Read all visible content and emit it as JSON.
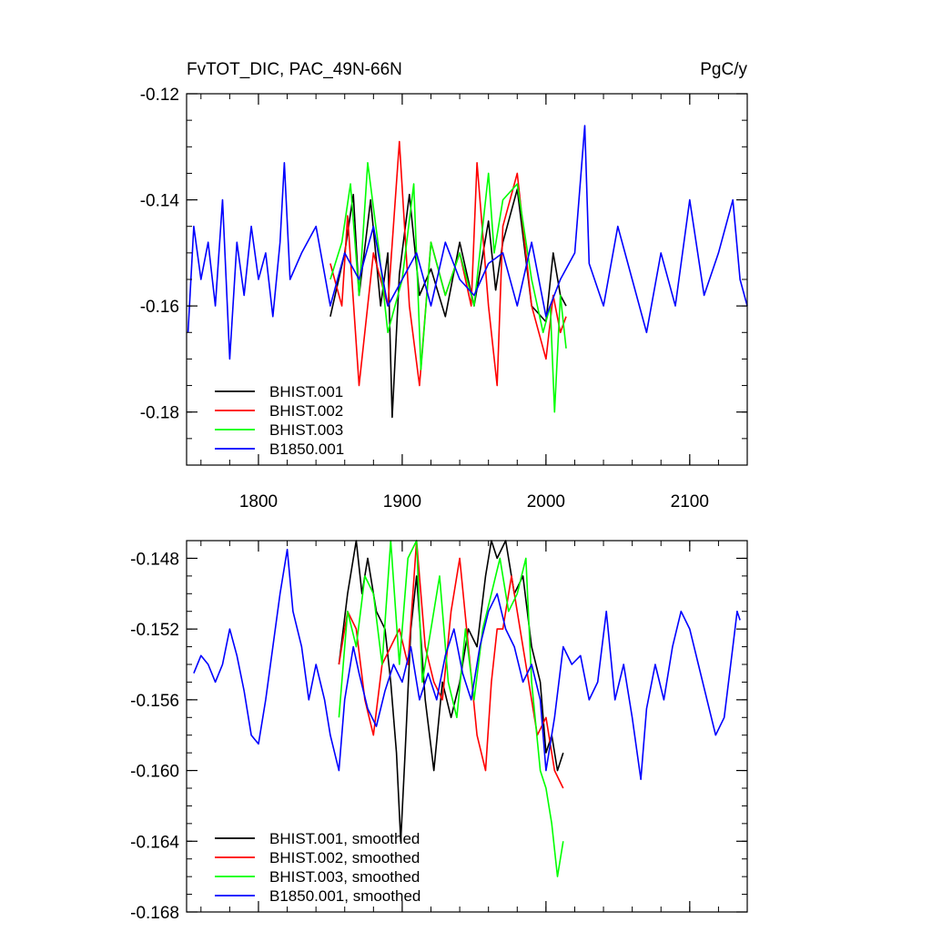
{
  "chart_data": [
    {
      "type": "line",
      "title": "FvTOT_DIC, PAC_49N-66N",
      "units": "PgC/y",
      "xlim": [
        1750,
        2140
      ],
      "ylim": [
        -0.19,
        -0.12
      ],
      "xticks": [
        1800,
        1900,
        2000,
        2100
      ],
      "xtick_labels": [
        "1800",
        "1900",
        "2000",
        "2100"
      ],
      "yticks": [
        -0.12,
        -0.14,
        -0.16,
        -0.18
      ],
      "ytick_labels": [
        "-0.12",
        "-0.14",
        "-0.16",
        "-0.18"
      ],
      "legend_position": "bottom-left",
      "series": [
        {
          "name": "BHIST.001",
          "color": "#000000",
          "x": [
            1850,
            1860,
            1866,
            1870,
            1878,
            1885,
            1890,
            1893,
            1898,
            1905,
            1912,
            1920,
            1930,
            1940,
            1950,
            1960,
            1965,
            1970,
            1980,
            1990,
            2000,
            2005,
            2010,
            2014
          ],
          "values": [
            -0.162,
            -0.15,
            -0.139,
            -0.158,
            -0.14,
            -0.16,
            -0.15,
            -0.181,
            -0.154,
            -0.139,
            -0.158,
            -0.153,
            -0.162,
            -0.148,
            -0.16,
            -0.144,
            -0.157,
            -0.148,
            -0.138,
            -0.16,
            -0.163,
            -0.15,
            -0.158,
            -0.16
          ]
        },
        {
          "name": "BHIST.002",
          "color": "#ff0000",
          "x": [
            1850,
            1858,
            1862,
            1870,
            1880,
            1890,
            1898,
            1905,
            1912,
            1920,
            1930,
            1940,
            1948,
            1952,
            1960,
            1966,
            1970,
            1980,
            1990,
            2000,
            2005,
            2010,
            2014
          ],
          "values": [
            -0.152,
            -0.16,
            -0.143,
            -0.175,
            -0.15,
            -0.16,
            -0.129,
            -0.16,
            -0.175,
            -0.148,
            -0.158,
            -0.15,
            -0.16,
            -0.133,
            -0.16,
            -0.175,
            -0.145,
            -0.135,
            -0.16,
            -0.17,
            -0.158,
            -0.165,
            -0.162
          ]
        },
        {
          "name": "BHIST.003",
          "color": "#00ff00",
          "x": [
            1850,
            1858,
            1864,
            1870,
            1876,
            1884,
            1890,
            1900,
            1908,
            1913,
            1920,
            1930,
            1940,
            1950,
            1960,
            1964,
            1970,
            1980,
            1990,
            1998,
            2003,
            2006,
            2010,
            2014
          ],
          "values": [
            -0.155,
            -0.148,
            -0.137,
            -0.158,
            -0.133,
            -0.15,
            -0.165,
            -0.155,
            -0.137,
            -0.172,
            -0.148,
            -0.158,
            -0.15,
            -0.16,
            -0.135,
            -0.15,
            -0.14,
            -0.137,
            -0.155,
            -0.165,
            -0.16,
            -0.18,
            -0.158,
            -0.168
          ]
        },
        {
          "name": "B1850.001",
          "color": "#0000ff",
          "x": [
            1751,
            1755,
            1760,
            1765,
            1770,
            1775,
            1780,
            1785,
            1790,
            1795,
            1800,
            1805,
            1810,
            1815,
            1818,
            1822,
            1830,
            1840,
            1850,
            1860,
            1870,
            1880,
            1890,
            1900,
            1910,
            1920,
            1930,
            1940,
            1950,
            1960,
            1970,
            1980,
            1990,
            2000,
            2010,
            2020,
            2027,
            2030,
            2040,
            2050,
            2060,
            2070,
            2080,
            2090,
            2100,
            2110,
            2120,
            2130,
            2135,
            2140
          ],
          "values": [
            -0.165,
            -0.145,
            -0.155,
            -0.148,
            -0.16,
            -0.14,
            -0.17,
            -0.148,
            -0.158,
            -0.145,
            -0.155,
            -0.15,
            -0.162,
            -0.148,
            -0.133,
            -0.155,
            -0.15,
            -0.145,
            -0.16,
            -0.15,
            -0.155,
            -0.145,
            -0.16,
            -0.155,
            -0.15,
            -0.16,
            -0.148,
            -0.155,
            -0.158,
            -0.152,
            -0.15,
            -0.16,
            -0.148,
            -0.162,
            -0.155,
            -0.15,
            -0.126,
            -0.152,
            -0.16,
            -0.145,
            -0.155,
            -0.165,
            -0.15,
            -0.16,
            -0.14,
            -0.158,
            -0.15,
            -0.14,
            -0.155,
            -0.16
          ]
        }
      ]
    },
    {
      "type": "line",
      "xlim": [
        1750,
        2140
      ],
      "ylim": [
        -0.168,
        -0.147
      ],
      "xticks": [
        1800,
        1900,
        2000,
        2100
      ],
      "yticks": [
        -0.148,
        -0.152,
        -0.156,
        -0.16,
        -0.164,
        -0.168
      ],
      "ytick_labels": [
        "-0.148",
        "-0.152",
        "-0.156",
        "-0.160",
        "-0.164",
        "-0.168"
      ],
      "legend_position": "bottom-left",
      "series": [
        {
          "name": "BHIST.001, smoothed",
          "color": "#000000",
          "x": [
            1856,
            1862,
            1868,
            1872,
            1876,
            1882,
            1888,
            1892,
            1896,
            1899,
            1902,
            1906,
            1910,
            1916,
            1922,
            1928,
            1934,
            1940,
            1946,
            1952,
            1958,
            1962,
            1966,
            1972,
            1978,
            1984,
            1990,
            1996,
            2000,
            2004,
            2008,
            2012
          ],
          "values": [
            -0.154,
            -0.15,
            -0.147,
            -0.15,
            -0.148,
            -0.151,
            -0.152,
            -0.155,
            -0.159,
            -0.164,
            -0.159,
            -0.152,
            -0.149,
            -0.156,
            -0.16,
            -0.155,
            -0.157,
            -0.155,
            -0.152,
            -0.153,
            -0.149,
            -0.147,
            -0.148,
            -0.147,
            -0.15,
            -0.149,
            -0.153,
            -0.155,
            -0.159,
            -0.158,
            -0.16,
            -0.159
          ]
        },
        {
          "name": "BHIST.002, smoothed",
          "color": "#ff0000",
          "x": [
            1856,
            1862,
            1868,
            1874,
            1880,
            1886,
            1892,
            1898,
            1904,
            1910,
            1916,
            1922,
            1928,
            1934,
            1940,
            1946,
            1952,
            1958,
            1962,
            1966,
            1970,
            1976,
            1982,
            1988,
            1994,
            2000,
            2006,
            2012
          ],
          "values": [
            -0.154,
            -0.151,
            -0.152,
            -0.156,
            -0.158,
            -0.154,
            -0.153,
            -0.152,
            -0.154,
            -0.147,
            -0.153,
            -0.155,
            -0.156,
            -0.151,
            -0.148,
            -0.153,
            -0.158,
            -0.16,
            -0.155,
            -0.152,
            -0.152,
            -0.149,
            -0.152,
            -0.155,
            -0.158,
            -0.157,
            -0.16,
            -0.161
          ]
        },
        {
          "name": "BHIST.003, smoothed",
          "color": "#00ff00",
          "x": [
            1856,
            1862,
            1868,
            1874,
            1880,
            1886,
            1892,
            1898,
            1904,
            1910,
            1914,
            1920,
            1926,
            1932,
            1938,
            1944,
            1950,
            1956,
            1962,
            1968,
            1974,
            1980,
            1986,
            1990,
            1996,
            2000,
            2004,
            2008,
            2012
          ],
          "values": [
            -0.157,
            -0.151,
            -0.153,
            -0.149,
            -0.15,
            -0.154,
            -0.147,
            -0.154,
            -0.148,
            -0.147,
            -0.155,
            -0.152,
            -0.149,
            -0.155,
            -0.157,
            -0.152,
            -0.156,
            -0.152,
            -0.15,
            -0.148,
            -0.151,
            -0.15,
            -0.148,
            -0.155,
            -0.16,
            -0.161,
            -0.163,
            -0.166,
            -0.164
          ]
        },
        {
          "name": "B1850.001, smoothed",
          "color": "#0000ff",
          "x": [
            1755,
            1760,
            1765,
            1770,
            1775,
            1780,
            1785,
            1790,
            1795,
            1800,
            1805,
            1810,
            1815,
            1820,
            1824,
            1830,
            1835,
            1840,
            1846,
            1850,
            1856,
            1860,
            1866,
            1870,
            1876,
            1882,
            1888,
            1894,
            1900,
            1906,
            1912,
            1918,
            1924,
            1930,
            1936,
            1942,
            1948,
            1954,
            1960,
            1966,
            1972,
            1978,
            1984,
            1990,
            1996,
            2000,
            2006,
            2012,
            2018,
            2024,
            2030,
            2036,
            2042,
            2048,
            2054,
            2060,
            2066,
            2070,
            2076,
            2082,
            2088,
            2094,
            2100,
            2106,
            2112,
            2118,
            2124,
            2130,
            2133,
            2135
          ],
          "values": [
            -0.1545,
            -0.1535,
            -0.154,
            -0.155,
            -0.154,
            -0.152,
            -0.1535,
            -0.1555,
            -0.158,
            -0.1585,
            -0.156,
            -0.153,
            -0.15,
            -0.1475,
            -0.151,
            -0.153,
            -0.156,
            -0.154,
            -0.156,
            -0.158,
            -0.16,
            -0.156,
            -0.153,
            -0.1545,
            -0.1565,
            -0.1575,
            -0.1555,
            -0.154,
            -0.155,
            -0.153,
            -0.156,
            -0.1545,
            -0.156,
            -0.1535,
            -0.152,
            -0.1545,
            -0.156,
            -0.153,
            -0.151,
            -0.15,
            -0.152,
            -0.153,
            -0.155,
            -0.154,
            -0.156,
            -0.16,
            -0.157,
            -0.153,
            -0.154,
            -0.1535,
            -0.156,
            -0.155,
            -0.151,
            -0.156,
            -0.154,
            -0.157,
            -0.1605,
            -0.1565,
            -0.154,
            -0.156,
            -0.153,
            -0.151,
            -0.152,
            -0.154,
            -0.156,
            -0.158,
            -0.157,
            -0.153,
            -0.151,
            -0.1515
          ]
        }
      ]
    }
  ]
}
